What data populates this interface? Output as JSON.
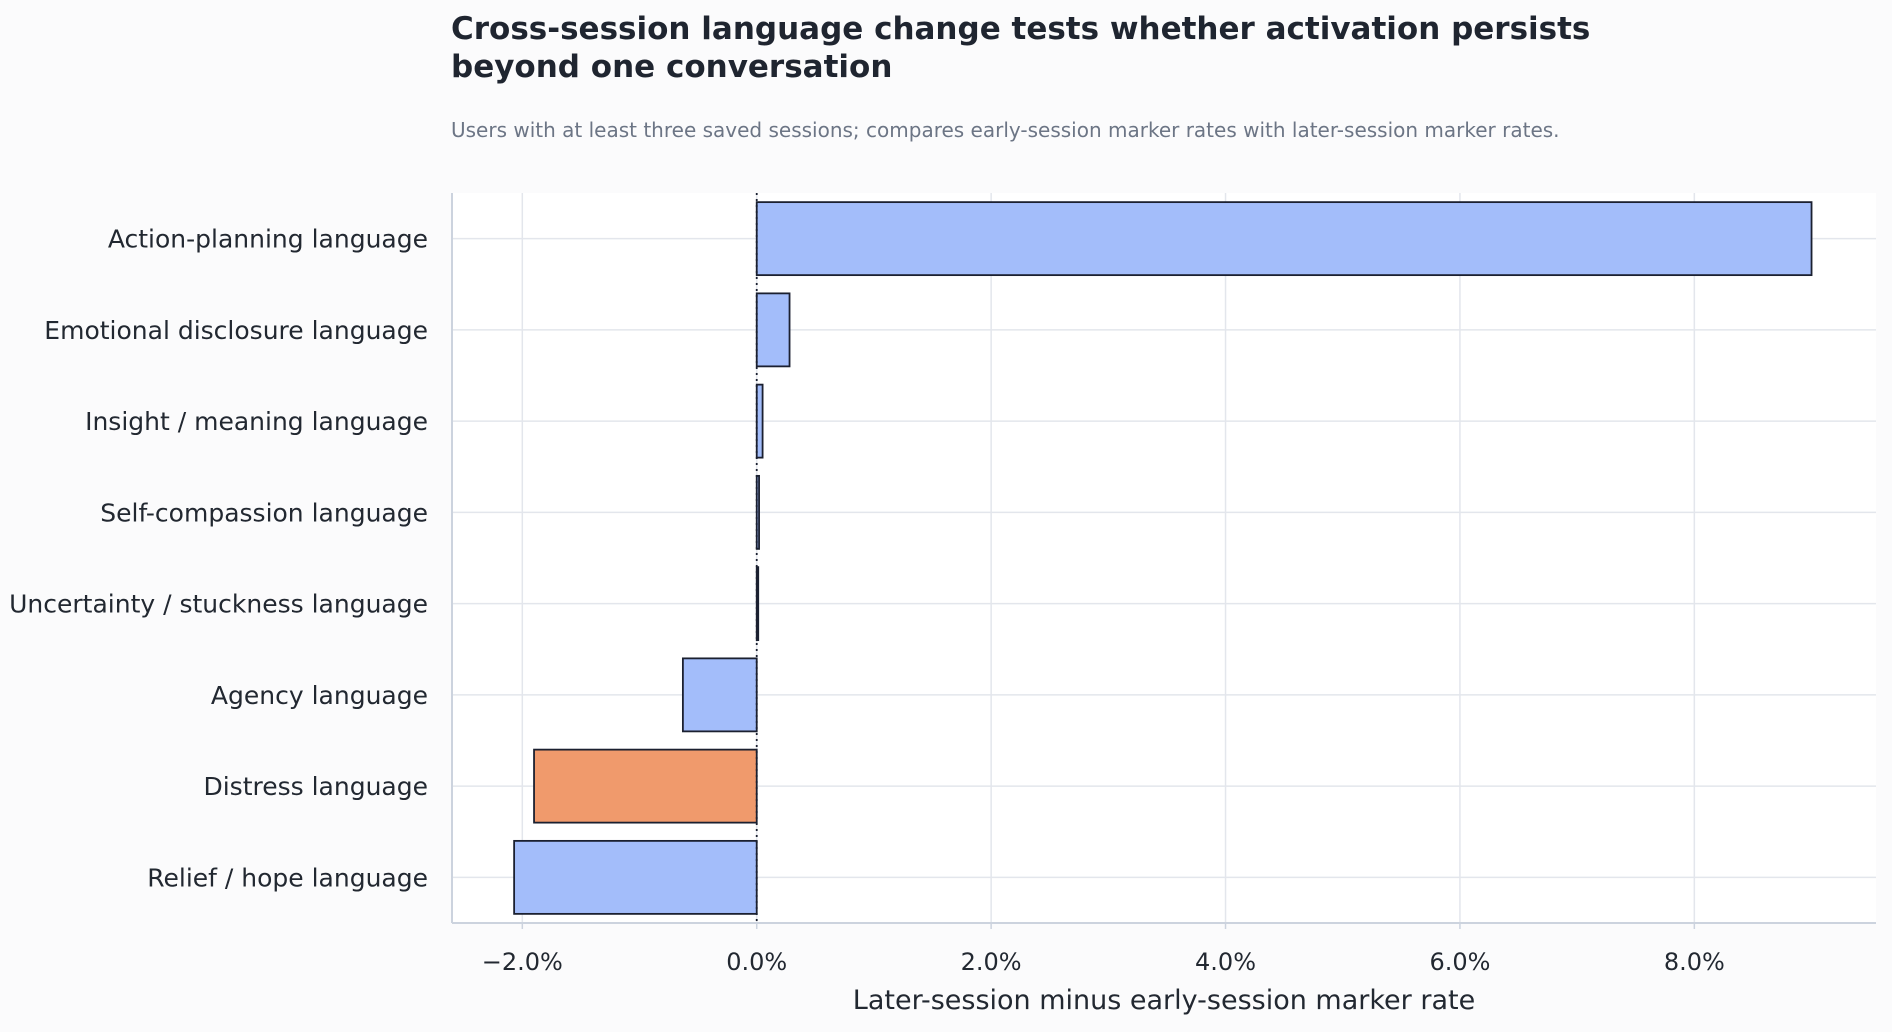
{
  "title": "Cross-session language change tests whether activation persists beyond one conversation",
  "subtitle": "Users with at least three saved sessions; compares early-session marker rates with later-session marker rates.",
  "chart_data": {
    "type": "bar",
    "orientation": "horizontal",
    "categories": [
      "Action-planning language",
      "Emotional disclosure language",
      "Insight / meaning language",
      "Self-compassion language",
      "Uncertainty / stuckness language",
      "Agency language",
      "Distress language",
      "Relief / hope language"
    ],
    "values": [
      9.0,
      0.28,
      0.05,
      0.02,
      0.0,
      -0.63,
      -1.9,
      -2.07
    ],
    "units": "%",
    "xlabel": "Later-session minus early-session marker rate",
    "ylabel": "",
    "xlim": [
      -2.6,
      9.55
    ],
    "xticks": [
      -2.0,
      0.0,
      2.0,
      4.0,
      6.0,
      8.0
    ],
    "xtick_labels": [
      "−2.0%",
      "0.0%",
      "2.0%",
      "4.0%",
      "6.0%",
      "8.0%"
    ],
    "reference_line": 0.0,
    "grid": true,
    "colors": {
      "default": "#a3bdfa",
      "highlight": "#f09a6c",
      "edge": "#1b2030",
      "grid": "#e3e6ec",
      "axis": "#ccd3de"
    },
    "highlight_category": "Distress language"
  }
}
